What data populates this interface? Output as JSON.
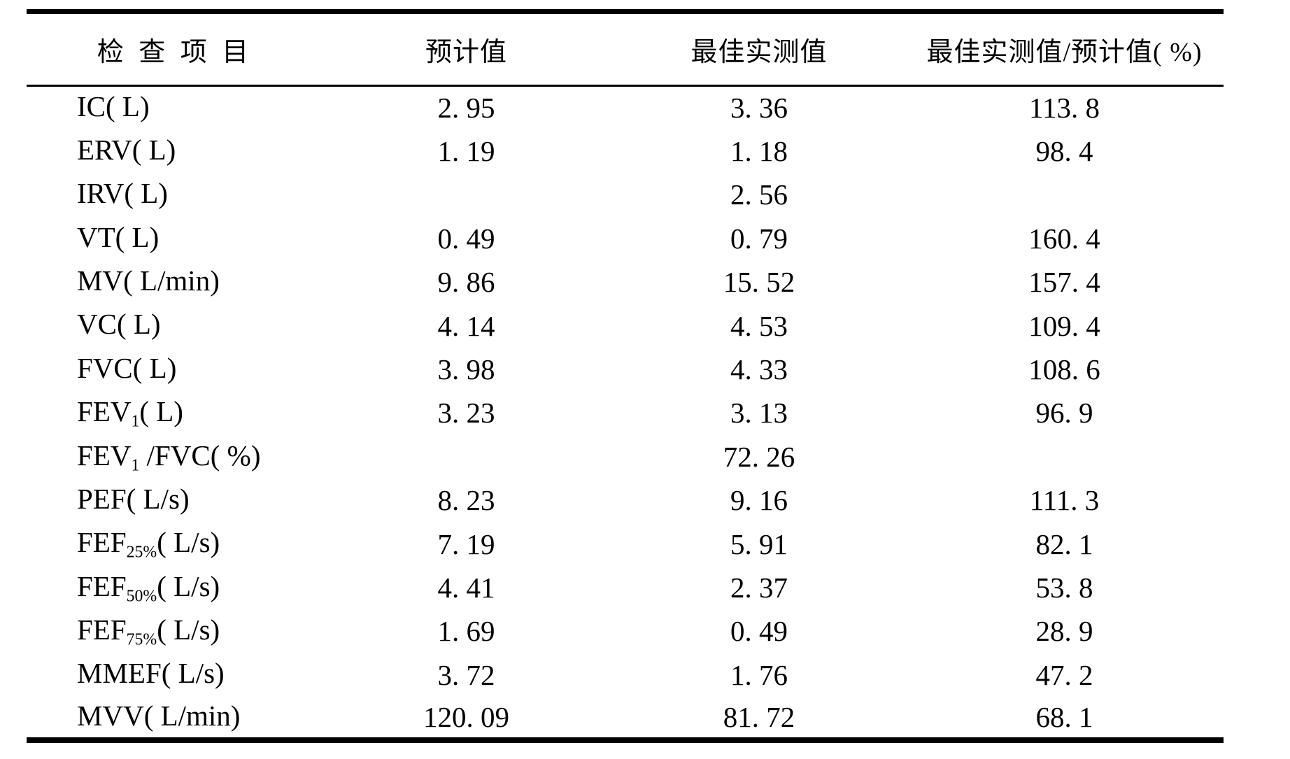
{
  "table": {
    "columns": [
      "检 查 项 目",
      "预计值",
      "最佳实测值",
      "最佳实测值/预计值( %)"
    ],
    "rows": [
      {
        "item_base": "IC",
        "item_sub": "",
        "item_rest": "( L)",
        "predicted": "2. 95",
        "measured": "3. 36",
        "ratio": "113. 8"
      },
      {
        "item_base": "ERV",
        "item_sub": "",
        "item_rest": "( L)",
        "predicted": "1. 19",
        "measured": "1. 18",
        "ratio": "98. 4"
      },
      {
        "item_base": "IRV",
        "item_sub": "",
        "item_rest": "( L)",
        "predicted": "",
        "measured": "2. 56",
        "ratio": ""
      },
      {
        "item_base": "VT",
        "item_sub": "",
        "item_rest": "( L)",
        "predicted": "0. 49",
        "measured": "0. 79",
        "ratio": "160. 4"
      },
      {
        "item_base": "MV",
        "item_sub": "",
        "item_rest": "( L/min)",
        "predicted": "9. 86",
        "measured": "15. 52",
        "ratio": "157. 4"
      },
      {
        "item_base": "VC",
        "item_sub": "",
        "item_rest": "( L)",
        "predicted": "4. 14",
        "measured": "4. 53",
        "ratio": "109. 4"
      },
      {
        "item_base": "FVC",
        "item_sub": "",
        "item_rest": "( L)",
        "predicted": "3. 98",
        "measured": "4. 33",
        "ratio": "108. 6"
      },
      {
        "item_base": "FEV",
        "item_sub": "1",
        "item_rest": "( L)",
        "predicted": "3. 23",
        "measured": "3. 13",
        "ratio": "96. 9"
      },
      {
        "item_base": "FEV",
        "item_sub": "1",
        "item_rest": " /FVC( %)",
        "predicted": "",
        "measured": "72. 26",
        "ratio": ""
      },
      {
        "item_base": "PEF",
        "item_sub": "",
        "item_rest": "( L/s)",
        "predicted": "8. 23",
        "measured": "9. 16",
        "ratio": "111. 3"
      },
      {
        "item_base": "FEF",
        "item_sub": "25%",
        "item_rest": "( L/s)",
        "predicted": "7. 19",
        "measured": "5. 91",
        "ratio": "82. 1"
      },
      {
        "item_base": "FEF",
        "item_sub": "50%",
        "item_rest": "( L/s)",
        "predicted": "4. 41",
        "measured": "2. 37",
        "ratio": "53. 8"
      },
      {
        "item_base": "FEF",
        "item_sub": "75%",
        "item_rest": "( L/s)",
        "predicted": "1. 69",
        "measured": "0. 49",
        "ratio": "28. 9"
      },
      {
        "item_base": "MMEF",
        "item_sub": "",
        "item_rest": "( L/s)",
        "predicted": "3. 72",
        "measured": "1. 76",
        "ratio": "47. 2"
      },
      {
        "item_base": "MVV",
        "item_sub": "",
        "item_rest": "( L/min)",
        "predicted": "120. 09",
        "measured": "81. 72",
        "ratio": "68. 1"
      }
    ]
  }
}
